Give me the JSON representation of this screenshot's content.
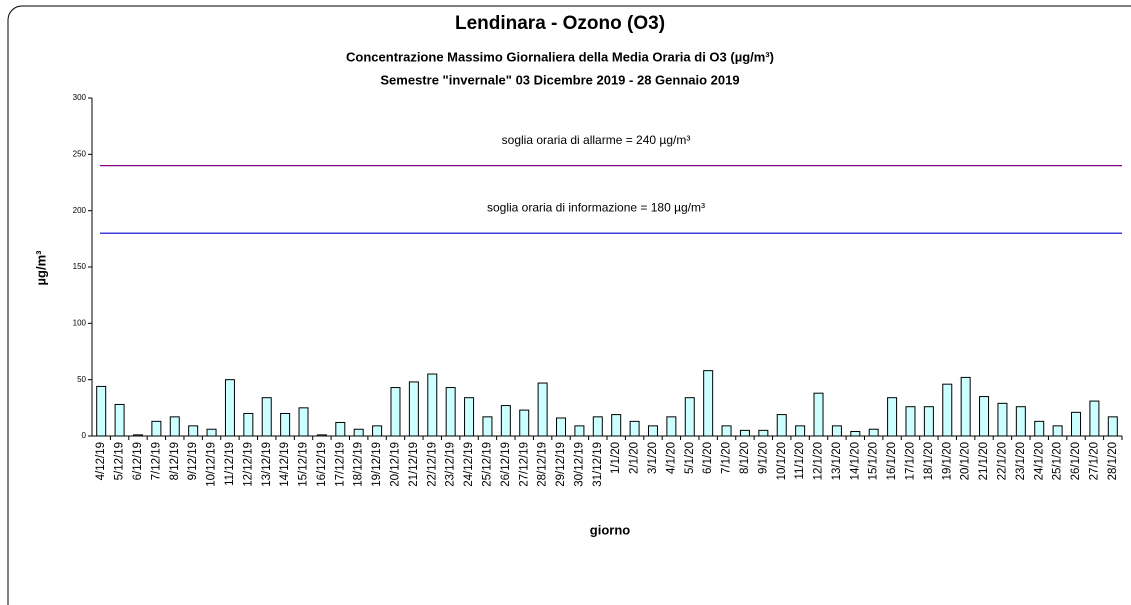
{
  "chart_data": {
    "type": "bar",
    "title": "Lendinara - Ozono (O3)",
    "subtitle": "Concentrazione  Massimo Giornaliera della Media Oraria di O3 (µg/m³)",
    "subtitle2": "Semestre \"invernale\" 03 Dicembre 2019 - 28 Gennaio 2019",
    "y_label": "µg/m³",
    "x_label": "giorno",
    "categories": [
      "4/12/19",
      "5/12/19",
      "6/12/19",
      "7/12/19",
      "8/12/19",
      "9/12/19",
      "10/12/19",
      "11/12/19",
      "12/12/19",
      "13/12/19",
      "14/12/19",
      "15/12/19",
      "16/12/19",
      "17/12/19",
      "18/12/19",
      "19/12/19",
      "20/12/19",
      "21/12/19",
      "22/12/19",
      "23/12/19",
      "24/12/19",
      "25/12/19",
      "26/12/19",
      "27/12/19",
      "28/12/19",
      "29/12/19",
      "30/12/19",
      "31/12/19",
      "1/1/20",
      "2/1/20",
      "3/1/20",
      "4/1/20",
      "5/1/20",
      "6/1/20",
      "7/1/20",
      "8/1/20",
      "9/1/20",
      "10/1/20",
      "11/1/20",
      "12/1/20",
      "13/1/20",
      "14/1/20",
      "15/1/20",
      "16/1/20",
      "17/1/20",
      "18/1/20",
      "19/1/20",
      "20/1/20",
      "21/1/20",
      "22/1/20",
      "23/1/20",
      "24/1/20",
      "25/1/20",
      "26/1/20",
      "27/1/20",
      "28/1/20"
    ],
    "values": [
      44,
      28,
      1,
      13,
      17,
      9,
      6,
      50,
      20,
      34,
      20,
      25,
      1,
      12,
      6,
      9,
      43,
      48,
      55,
      43,
      34,
      17,
      27,
      23,
      47,
      16,
      9,
      17,
      19,
      13,
      9,
      17,
      34,
      58,
      9,
      5,
      5,
      19,
      9,
      38,
      9,
      4,
      6,
      34,
      26,
      26,
      46,
      52,
      35,
      29,
      26,
      13,
      9,
      21,
      31,
      17
    ],
    "color": "#ccffff",
    "ylim": [
      0,
      300
    ],
    "yticks": [
      0,
      50,
      100,
      150,
      200,
      250,
      300
    ],
    "grid": false,
    "thresholds": [
      {
        "value": 240,
        "label": "soglia oraria di allarme = 240 µg/m³",
        "color": "#800080"
      },
      {
        "value": 180,
        "label": "soglia oraria di informazione = 180 µg/m³",
        "color": "#0000cc"
      }
    ]
  }
}
